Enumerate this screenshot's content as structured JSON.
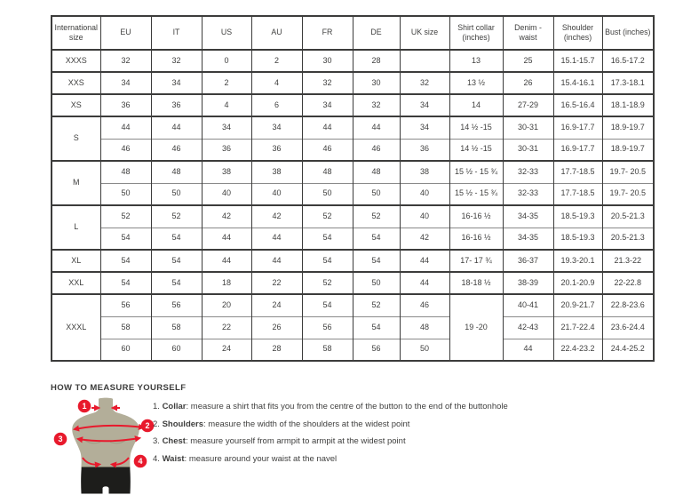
{
  "table": {
    "headers": [
      "International size",
      "EU",
      "IT",
      "US",
      "AU",
      "FR",
      "DE",
      "UK size",
      "Shirt collar (inches)",
      "Denim - waist",
      "Shoulder (inches)",
      "Bust (inches)"
    ],
    "groups": [
      {
        "size": "XXXS",
        "rows": [
          [
            "32",
            "32",
            "0",
            "2",
            "30",
            "28",
            "",
            "13",
            "25",
            "15.1-15.7",
            "16.5-17.2"
          ]
        ]
      },
      {
        "size": "XXS",
        "rows": [
          [
            "34",
            "34",
            "2",
            "4",
            "32",
            "30",
            "32",
            "13 ½",
            "26",
            "15.4-16.1",
            "17.3-18.1"
          ]
        ]
      },
      {
        "size": "XS",
        "rows": [
          [
            "36",
            "36",
            "4",
            "6",
            "34",
            "32",
            "34",
            "14",
            "27-29",
            "16.5-16.4",
            "18.1-18.9"
          ]
        ]
      },
      {
        "size": "S",
        "rows": [
          [
            "44",
            "44",
            "34",
            "34",
            "44",
            "44",
            "34",
            "14 ½ -15",
            "30-31",
            "16.9-17.7",
            "18.9-19.7"
          ],
          [
            "46",
            "46",
            "36",
            "36",
            "46",
            "46",
            "36",
            "14 ½ -15",
            "30-31",
            "16.9-17.7",
            "18.9-19.7"
          ]
        ]
      },
      {
        "size": "M",
        "rows": [
          [
            "48",
            "48",
            "38",
            "38",
            "48",
            "48",
            "38",
            "15 ½ - 15 ¾",
            "32-33",
            "17.7-18.5",
            "19.7- 20.5"
          ],
          [
            "50",
            "50",
            "40",
            "40",
            "50",
            "50",
            "40",
            "15 ½ - 15 ¾",
            "32-33",
            "17.7-18.5",
            "19.7- 20.5"
          ]
        ]
      },
      {
        "size": "L",
        "rows": [
          [
            "52",
            "52",
            "42",
            "42",
            "52",
            "52",
            "40",
            "16-16 ½",
            "34-35",
            "18.5-19.3",
            "20.5-21.3"
          ],
          [
            "54",
            "54",
            "44",
            "44",
            "54",
            "54",
            "42",
            "16-16 ½",
            "34-35",
            "18.5-19.3",
            "20.5-21.3"
          ]
        ]
      },
      {
        "size": "XL",
        "rows": [
          [
            "54",
            "54",
            "44",
            "44",
            "54",
            "54",
            "44",
            "17- 17 ¾",
            "36-37",
            "19.3-20.1",
            "21.3-22"
          ]
        ]
      },
      {
        "size": "XXL",
        "rows": [
          [
            "54",
            "54",
            "18",
            "22",
            "52",
            "50",
            "44",
            "18-18 ½",
            "38-39",
            "20.1-20.9",
            "22-22.8"
          ]
        ]
      },
      {
        "size": "XXXL",
        "merged_collar": "19 -20",
        "rows": [
          [
            "56",
            "56",
            "20",
            "24",
            "54",
            "52",
            "46",
            "40-41",
            "20.9-21.7",
            "22.8-23.6"
          ],
          [
            "58",
            "58",
            "22",
            "26",
            "56",
            "54",
            "48",
            "42-43",
            "21.7-22.4",
            "23.6-24.4"
          ],
          [
            "60",
            "60",
            "24",
            "28",
            "58",
            "56",
            "50",
            "44",
            "22.4-23.2",
            "24.4-25.2"
          ]
        ]
      }
    ]
  },
  "measure": {
    "title": "HOW TO MEASURE YOURSELF",
    "badges": [
      "1",
      "2",
      "3",
      "4"
    ],
    "steps": [
      {
        "num": "1.",
        "label": "Collar",
        "text": ": measure a shirt that fits you from the centre of the button to the end of the buttonhole"
      },
      {
        "num": "2.",
        "label": "Shoulders",
        "text": ": measure the width of the shoulders at the widest point"
      },
      {
        "num": "3.",
        "label": "Chest",
        "text": ": measure yourself from armpit to armpit at the widest point"
      },
      {
        "num": "4.",
        "label": "Waist",
        "text": ": measure around your waist at the navel"
      }
    ]
  },
  "colors": {
    "accent_red": "#e8192c",
    "body_tan": "#b3ae99",
    "body_shade": "#a19b85",
    "shorts_black": "#1d1d1b",
    "border_dark": "#3c3c3b",
    "border_light": "#8a8a8a",
    "text": "#3f3f3e"
  }
}
